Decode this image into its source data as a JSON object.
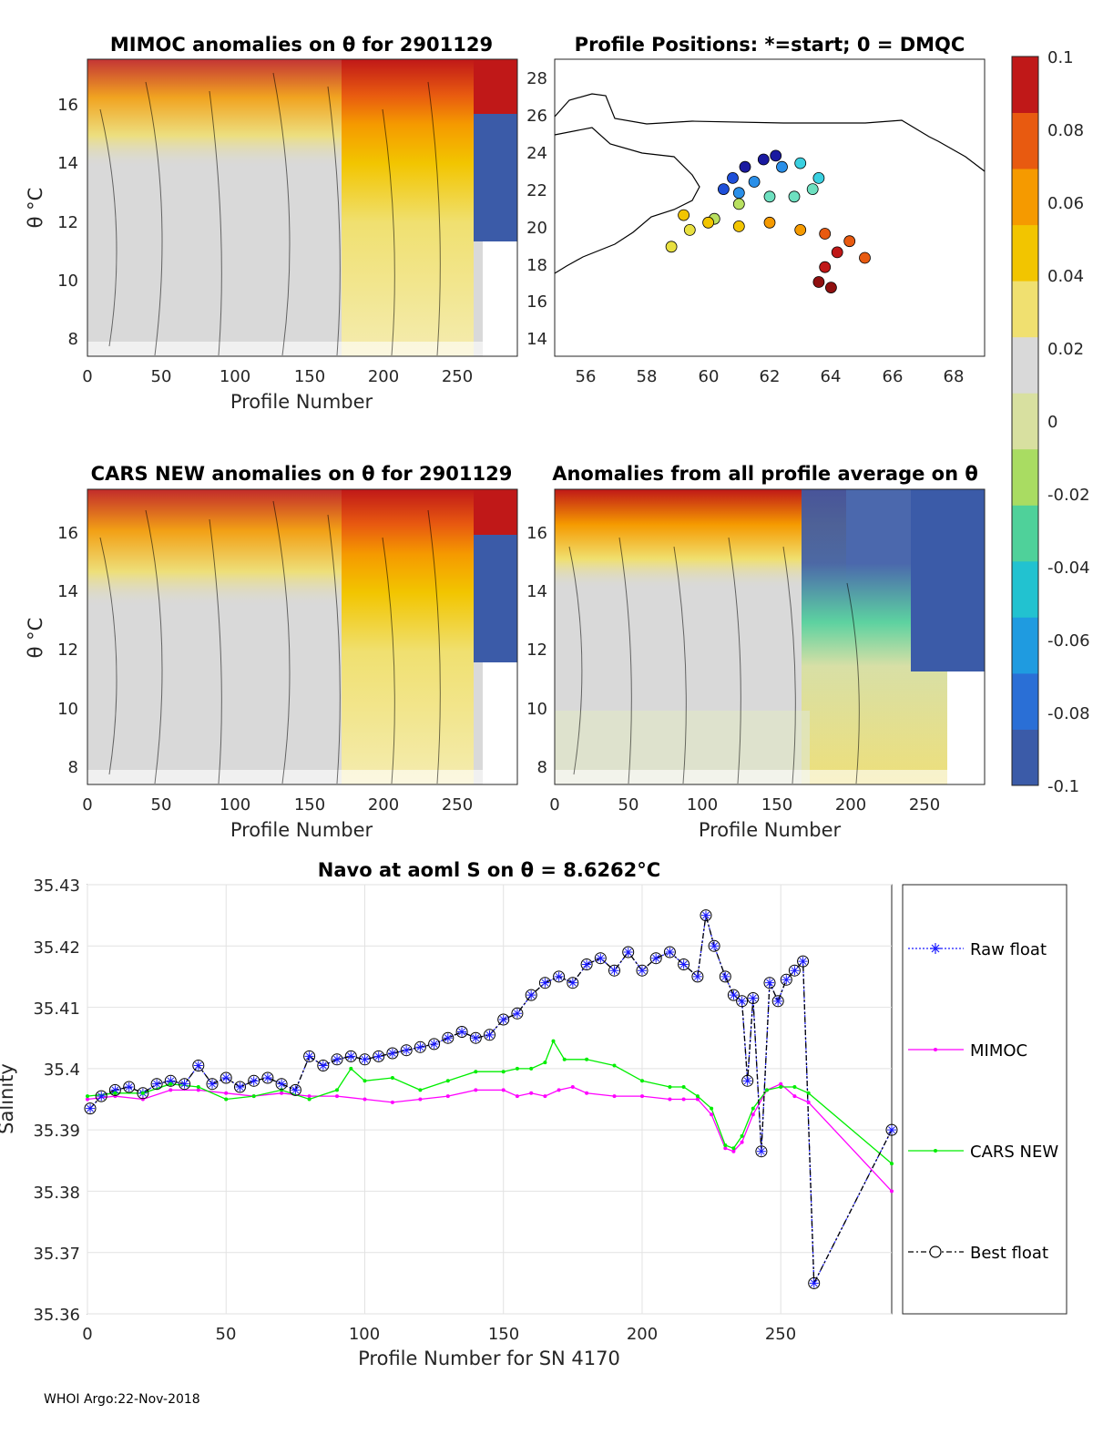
{
  "footer": "WHOI Argo:22-Nov-2018",
  "colorbar": {
    "ticks": [
      "0.1",
      "0.08",
      "0.06",
      "0.04",
      "0.02",
      "0",
      "-0.02",
      "-0.04",
      "-0.06",
      "-0.08",
      "-0.1"
    ],
    "colors": [
      "#3b5ba8",
      "#2a6fd6",
      "#1f9be0",
      "#22c2d0",
      "#4fd19a",
      "#a9dc62",
      "#d8e0a0",
      "#d9d9d9",
      "#f0e070",
      "#f2c500",
      "#f59a00",
      "#e85a10",
      "#c01818"
    ]
  },
  "chart_data": [
    {
      "id": "mimoc",
      "type": "heatmap",
      "title": "MIMOC anomalies on θ  for 2901129",
      "xlabel": "Profile Number",
      "ylabel": "θ °C",
      "xlim": [
        0,
        290
      ],
      "ylim": [
        7.5,
        17.4
      ],
      "xticks": [
        "0",
        "50",
        "100",
        "150",
        "200",
        "250"
      ],
      "yticks": [
        "8",
        "10",
        "12",
        "14",
        "16"
      ],
      "pattern": "warm anomalies near surface and after profile ~190"
    },
    {
      "id": "positions",
      "type": "scatter",
      "title": "Profile Positions: *=start; 0 = DMQC",
      "xlim": [
        55,
        69
      ],
      "ylim": [
        13,
        29
      ],
      "xticks": [
        "56",
        "58",
        "60",
        "62",
        "64",
        "66",
        "68"
      ],
      "yticks": [
        "14",
        "16",
        "18",
        "20",
        "22",
        "24",
        "26",
        "28"
      ],
      "track_lon": [
        62.2,
        61.8,
        61.2,
        60.8,
        60.5,
        61.0,
        61.5,
        62.4,
        63.0,
        63.6,
        63.4,
        62.8,
        62.0,
        61.0,
        60.2,
        59.4,
        58.8,
        59.2,
        60.0,
        61.0,
        62.0,
        63.0,
        63.8,
        64.6,
        65.1,
        64.2,
        63.8,
        63.6,
        64.0
      ],
      "track_lat": [
        23.8,
        23.6,
        23.2,
        22.6,
        22.0,
        21.8,
        22.4,
        23.2,
        23.4,
        22.6,
        22.0,
        21.6,
        21.6,
        21.2,
        20.4,
        19.8,
        18.9,
        20.6,
        20.2,
        20.0,
        20.2,
        19.8,
        19.6,
        19.2,
        18.3,
        18.6,
        17.8,
        17.0,
        16.7
      ]
    },
    {
      "id": "cars",
      "type": "heatmap",
      "title": "CARS NEW anomalies on θ for 2901129",
      "xlabel": "Profile Number",
      "ylabel": "θ °C",
      "xlim": [
        0,
        290
      ],
      "ylim": [
        7.5,
        17.4
      ],
      "xticks": [
        "0",
        "50",
        "100",
        "150",
        "200",
        "250"
      ],
      "yticks": [
        "8",
        "10",
        "12",
        "14",
        "16"
      ],
      "pattern": "warm anomalies near surface and after profile ~190"
    },
    {
      "id": "allavg",
      "type": "heatmap",
      "title": "Anomalies from all profile average on θ",
      "xlabel": "Profile Number",
      "xlim": [
        0,
        290
      ],
      "ylim": [
        7.5,
        17.4
      ],
      "xticks": [
        "0",
        "50",
        "100",
        "150",
        "200",
        "250"
      ],
      "yticks": [
        "8",
        "10",
        "12",
        "14",
        "16"
      ],
      "pattern": "warm near surface before ~200, cold near surface after ~200"
    },
    {
      "id": "salinity",
      "type": "line",
      "title": "Navo at aoml S on θ = 8.6262°C",
      "xlabel": "Profile Number for SN 4170",
      "ylabel": "Salinity",
      "xlim": [
        0,
        290
      ],
      "ylim": [
        35.36,
        35.43
      ],
      "xticks": [
        "0",
        "50",
        "100",
        "150",
        "200",
        "250"
      ],
      "yticks": [
        "35.36",
        "35.37",
        "35.38",
        "35.39",
        "35.4",
        "35.41",
        "35.42",
        "35.43"
      ],
      "series": [
        {
          "name": "Raw float",
          "color": "#1a1aff",
          "x": [
            1,
            5,
            10,
            15,
            20,
            25,
            30,
            35,
            40,
            45,
            50,
            55,
            60,
            65,
            70,
            75,
            80,
            85,
            90,
            95,
            100,
            105,
            110,
            115,
            120,
            125,
            130,
            135,
            140,
            145,
            150,
            155,
            160,
            165,
            170,
            175,
            180,
            185,
            190,
            195,
            200,
            205,
            210,
            215,
            220,
            223,
            226,
            230,
            233,
            236,
            238,
            240,
            243,
            246,
            249,
            252,
            255,
            258,
            262,
            290
          ],
          "y": [
            35.3935,
            35.3955,
            35.3965,
            35.397,
            35.396,
            35.3975,
            35.398,
            35.3975,
            35.4005,
            35.3975,
            35.3985,
            35.397,
            35.398,
            35.3985,
            35.3975,
            35.3965,
            35.402,
            35.4005,
            35.4015,
            35.402,
            35.4015,
            35.402,
            35.4025,
            35.403,
            35.4035,
            35.404,
            35.405,
            35.406,
            35.405,
            35.4055,
            35.408,
            35.409,
            35.412,
            35.414,
            35.415,
            35.414,
            35.417,
            35.418,
            35.416,
            35.419,
            35.416,
            35.418,
            35.419,
            35.417,
            35.415,
            35.425,
            35.42,
            35.415,
            35.412,
            35.411,
            35.398,
            35.4115,
            35.3865,
            35.414,
            35.411,
            35.4145,
            35.416,
            35.4175,
            35.365,
            35.39
          ]
        },
        {
          "name": "MIMOC",
          "color": "#ff00ff",
          "x": [
            0,
            10,
            20,
            30,
            40,
            50,
            60,
            70,
            80,
            90,
            100,
            110,
            120,
            130,
            140,
            150,
            155,
            160,
            165,
            170,
            175,
            180,
            190,
            200,
            210,
            215,
            220,
            225,
            230,
            233,
            236,
            240,
            245,
            250,
            255,
            260,
            290
          ],
          "y": [
            35.395,
            35.3955,
            35.395,
            35.3965,
            35.3965,
            35.396,
            35.3955,
            35.396,
            35.3955,
            35.3955,
            35.395,
            35.3945,
            35.395,
            35.3955,
            35.3965,
            35.3965,
            35.3955,
            35.396,
            35.3955,
            35.3965,
            35.397,
            35.396,
            35.3955,
            35.3955,
            35.395,
            35.395,
            35.395,
            35.3925,
            35.387,
            35.3865,
            35.388,
            35.3925,
            35.3965,
            35.3975,
            35.3955,
            35.3945,
            35.38
          ]
        },
        {
          "name": "CARS NEW",
          "color": "#00ee00",
          "x": [
            0,
            10,
            20,
            30,
            40,
            50,
            60,
            70,
            80,
            90,
            95,
            100,
            110,
            120,
            130,
            140,
            150,
            155,
            160,
            165,
            168,
            172,
            180,
            190,
            200,
            210,
            215,
            220,
            225,
            230,
            233,
            236,
            240,
            245,
            250,
            255,
            260,
            290
          ],
          "y": [
            35.3955,
            35.396,
            35.396,
            35.3975,
            35.397,
            35.395,
            35.3955,
            35.3965,
            35.395,
            35.3965,
            35.4,
            35.398,
            35.3985,
            35.3965,
            35.398,
            35.3995,
            35.3995,
            35.4,
            35.4,
            35.401,
            35.4045,
            35.4015,
            35.4015,
            35.4005,
            35.398,
            35.397,
            35.397,
            35.3955,
            35.3935,
            35.3875,
            35.387,
            35.389,
            35.3935,
            35.3965,
            35.397,
            35.397,
            35.396,
            35.3845
          ]
        },
        {
          "name": "Best float",
          "color": "#000000",
          "x": [
            1,
            5,
            10,
            15,
            20,
            25,
            30,
            35,
            40,
            45,
            50,
            55,
            60,
            65,
            70,
            75,
            80,
            85,
            90,
            95,
            100,
            105,
            110,
            115,
            120,
            125,
            130,
            135,
            140,
            145,
            150,
            155,
            160,
            165,
            170,
            175,
            180,
            185,
            190,
            195,
            200,
            205,
            210,
            215,
            220,
            223,
            226,
            230,
            233,
            236,
            238,
            240,
            243,
            246,
            249,
            252,
            255,
            258,
            262,
            290
          ],
          "y": [
            35.3935,
            35.3955,
            35.3965,
            35.397,
            35.396,
            35.3975,
            35.398,
            35.3975,
            35.4005,
            35.3975,
            35.3985,
            35.397,
            35.398,
            35.3985,
            35.3975,
            35.3965,
            35.402,
            35.4005,
            35.4015,
            35.402,
            35.4015,
            35.402,
            35.4025,
            35.403,
            35.4035,
            35.404,
            35.405,
            35.406,
            35.405,
            35.4055,
            35.408,
            35.409,
            35.412,
            35.414,
            35.415,
            35.414,
            35.417,
            35.418,
            35.416,
            35.419,
            35.416,
            35.418,
            35.419,
            35.417,
            35.415,
            35.425,
            35.42,
            35.415,
            35.412,
            35.411,
            35.398,
            35.4115,
            35.3865,
            35.414,
            35.411,
            35.4145,
            35.416,
            35.4175,
            35.365,
            35.39
          ]
        }
      ]
    }
  ]
}
